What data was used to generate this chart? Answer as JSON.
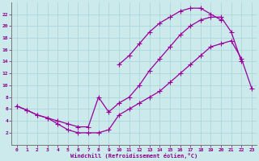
{
  "xlabel": "Windchill (Refroidissement éolien,°C)",
  "bg_color": "#cce9ec",
  "grid_color": "#a8d4d8",
  "line_color": "#990099",
  "marker": "+",
  "markersize": 4,
  "linewidth": 0.9,
  "line1_x": [
    0,
    1,
    2,
    3,
    4,
    5,
    6,
    7,
    8,
    9,
    10,
    11,
    12,
    13,
    14,
    15,
    16,
    17,
    18,
    19,
    20,
    21,
    22,
    23
  ],
  "line1_y": [
    6.5,
    5.8,
    5.0,
    4.5,
    3.5,
    2.5,
    2.0,
    2.0,
    2.0,
    2.5,
    5.0,
    6.0,
    7.0,
    8.0,
    9.0,
    10.5,
    12.0,
    13.5,
    15.0,
    16.5,
    17.0,
    17.5,
    14.5,
    9.5
  ],
  "line2_x": [
    0,
    1,
    2,
    3,
    4,
    5,
    6,
    7,
    8,
    9,
    10,
    11,
    12,
    13,
    14,
    15,
    16,
    17,
    18,
    19,
    20,
    21,
    22,
    23
  ],
  "line2_y": [
    6.5,
    5.8,
    5.0,
    4.5,
    4.0,
    3.5,
    3.0,
    3.0,
    8.0,
    5.5,
    7.0,
    8.0,
    10.0,
    12.5,
    14.5,
    16.5,
    18.5,
    20.0,
    21.0,
    21.5,
    21.5,
    19.0,
    14.0,
    null
  ],
  "line3_x": [
    10,
    11,
    12,
    13,
    14,
    15,
    16,
    17,
    18,
    19,
    20
  ],
  "line3_y": [
    13.5,
    15.0,
    17.0,
    19.0,
    20.5,
    21.5,
    22.5,
    23.0,
    23.0,
    22.0,
    21.0
  ],
  "xlim": [
    -0.5,
    23.5
  ],
  "ylim": [
    0,
    24
  ],
  "xticks": [
    0,
    1,
    2,
    3,
    4,
    5,
    6,
    7,
    8,
    9,
    10,
    11,
    12,
    13,
    14,
    15,
    16,
    17,
    18,
    19,
    20,
    21,
    22,
    23
  ],
  "yticks": [
    2,
    4,
    6,
    8,
    10,
    12,
    14,
    16,
    18,
    20,
    22
  ]
}
